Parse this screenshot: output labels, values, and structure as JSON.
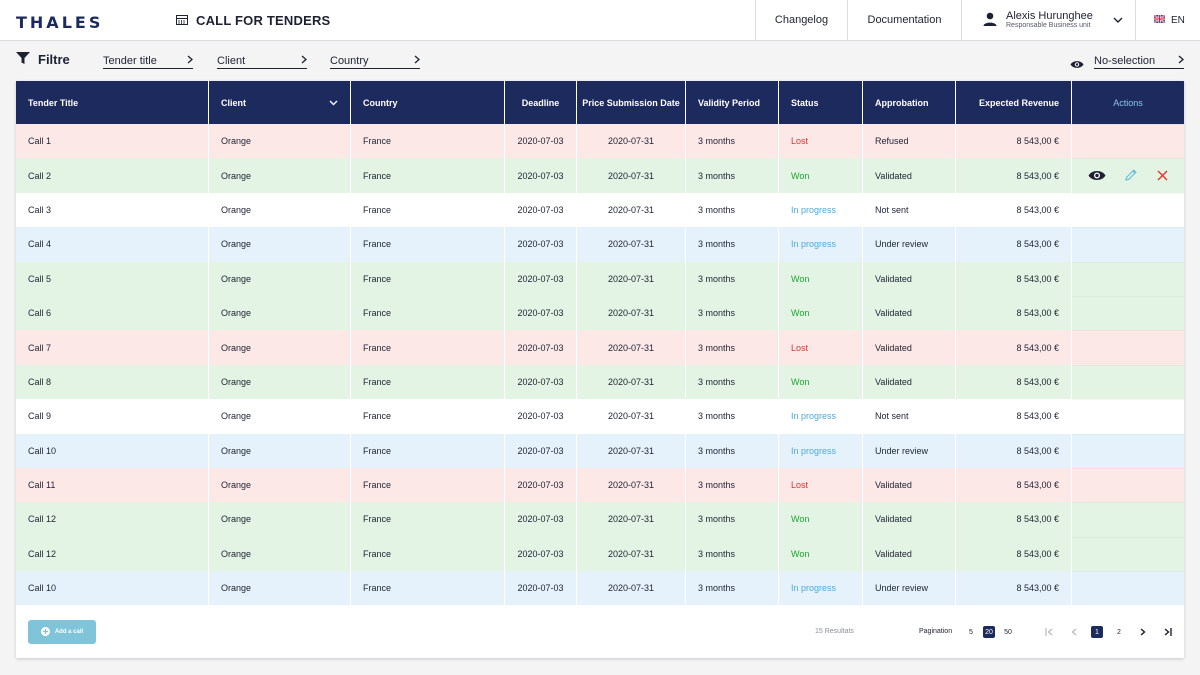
{
  "header": {
    "logo": "THALES",
    "app_title": "CALL FOR TENDERS",
    "changelog": "Changelog",
    "documentation": "Documentation",
    "user_name": "Alexis Hurunghee",
    "user_role": "Responsable Business unit",
    "language": "EN"
  },
  "filters": {
    "label": "Filtre",
    "tender_title": "Tender title",
    "client": "Client",
    "country": "Country",
    "selection": "No-selection"
  },
  "table": {
    "columns": {
      "tender_title": "Tender Title",
      "client": "Client",
      "country": "Country",
      "deadline": "Deadline",
      "price_submission": "Price Submission Date",
      "validity": "Validity Period",
      "status": "Status",
      "approbation": "Approbation",
      "revenue": "Expected Revenue",
      "actions": "Actions"
    },
    "rows": [
      {
        "title": "Call 1",
        "client": "Orange",
        "country": "France",
        "deadline": "2020-07-03",
        "price_date": "2020-07-31",
        "validity": "3 months",
        "status": "Lost",
        "approbation": "Refused",
        "revenue": "8 543,00 €"
      },
      {
        "title": "Call 2",
        "client": "Orange",
        "country": "France",
        "deadline": "2020-07-03",
        "price_date": "2020-07-31",
        "validity": "3 months",
        "status": "Won",
        "approbation": "Validated",
        "revenue": "8 543,00 €"
      },
      {
        "title": "Call 3",
        "client": "Orange",
        "country": "France",
        "deadline": "2020-07-03",
        "price_date": "2020-07-31",
        "validity": "3 months",
        "status": "In progress",
        "approbation": "Not sent",
        "revenue": "8 543,00 €"
      },
      {
        "title": "Call 4",
        "client": "Orange",
        "country": "France",
        "deadline": "2020-07-03",
        "price_date": "2020-07-31",
        "validity": "3 months",
        "status": "In progress",
        "approbation": "Under review",
        "revenue": "8 543,00 €"
      },
      {
        "title": "Call 5",
        "client": "Orange",
        "country": "France",
        "deadline": "2020-07-03",
        "price_date": "2020-07-31",
        "validity": "3 months",
        "status": "Won",
        "approbation": "Validated",
        "revenue": "8 543,00 €"
      },
      {
        "title": "Call 6",
        "client": "Orange",
        "country": "France",
        "deadline": "2020-07-03",
        "price_date": "2020-07-31",
        "validity": "3 months",
        "status": "Won",
        "approbation": "Validated",
        "revenue": "8 543,00 €"
      },
      {
        "title": "Call 7",
        "client": "Orange",
        "country": "France",
        "deadline": "2020-07-03",
        "price_date": "2020-07-31",
        "validity": "3 months",
        "status": "Lost",
        "approbation": "Validated",
        "revenue": "8 543,00 €"
      },
      {
        "title": "Call 8",
        "client": "Orange",
        "country": "France",
        "deadline": "2020-07-03",
        "price_date": "2020-07-31",
        "validity": "3 months",
        "status": "Won",
        "approbation": "Validated",
        "revenue": "8 543,00 €"
      },
      {
        "title": "Call 9",
        "client": "Orange",
        "country": "France",
        "deadline": "2020-07-03",
        "price_date": "2020-07-31",
        "validity": "3 months",
        "status": "In progress",
        "approbation": "Not sent",
        "revenue": "8 543,00 €"
      },
      {
        "title": "Call 10",
        "client": "Orange",
        "country": "France",
        "deadline": "2020-07-03",
        "price_date": "2020-07-31",
        "validity": "3 months",
        "status": "In progress",
        "approbation": "Under review",
        "revenue": "8 543,00 €"
      },
      {
        "title": "Call 11",
        "client": "Orange",
        "country": "France",
        "deadline": "2020-07-03",
        "price_date": "2020-07-31",
        "validity": "3 months",
        "status": "Lost",
        "approbation": "Validated",
        "revenue": "8 543,00 €"
      },
      {
        "title": "Call 12",
        "client": "Orange",
        "country": "France",
        "deadline": "2020-07-03",
        "price_date": "2020-07-31",
        "validity": "3 months",
        "status": "Won",
        "approbation": "Validated",
        "revenue": "8 543,00 €"
      },
      {
        "title": "Call 12",
        "client": "Orange",
        "country": "France",
        "deadline": "2020-07-03",
        "price_date": "2020-07-31",
        "validity": "3 months",
        "status": "Won",
        "approbation": "Validated",
        "revenue": "8 543,00 €"
      },
      {
        "title": "Call 10",
        "client": "Orange",
        "country": "France",
        "deadline": "2020-07-03",
        "price_date": "2020-07-31",
        "validity": "3 months",
        "status": "In progress",
        "approbation": "Under review",
        "revenue": "8 543,00 €"
      }
    ],
    "hovered_row_index": 1
  },
  "footer": {
    "add_button": "Add a call",
    "results": "15 Resultats",
    "pagination_label": "Pagination",
    "page_sizes": [
      "5",
      "20",
      "50"
    ],
    "active_page_size": "20",
    "pages": [
      "1",
      "2"
    ],
    "active_page": "1"
  },
  "colors": {
    "brand": "#1d2a5e",
    "lost": "#e0342f",
    "won": "#17a82e",
    "in_progress": "#4fa9d8",
    "row_lost": "#fde8e8",
    "row_won": "#e4f4e4",
    "row_in_progress": "#e5f2fc",
    "add_button": "#7fc4d8"
  },
  "icons": {
    "app": "table-icon",
    "user": "person-icon",
    "lang": "uk-flag-icon",
    "filter": "funnel-icon",
    "selection": "eye-icon",
    "row_actions": [
      "eye-icon",
      "pencil-icon",
      "close-icon"
    ],
    "add": "plus-circle-icon"
  }
}
